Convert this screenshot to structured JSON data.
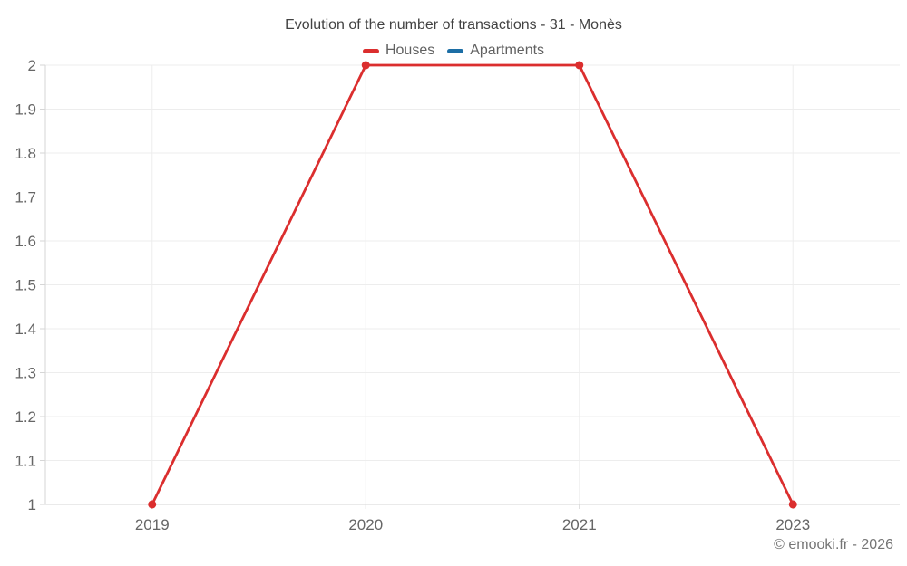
{
  "chart_data": {
    "type": "line",
    "title": "Evolution of the number of transactions - 31 - Monès",
    "categories": [
      "2019",
      "2020",
      "2021",
      "2023"
    ],
    "series": [
      {
        "name": "Houses",
        "color": "#db2e2e",
        "values": [
          1,
          2,
          2,
          1
        ]
      },
      {
        "name": "Apartments",
        "color": "#1c6ea5",
        "values": []
      }
    ],
    "ylim": [
      1,
      2
    ],
    "yticks": [
      1,
      1.1,
      1.2,
      1.3,
      1.4,
      1.5,
      1.6,
      1.7,
      1.8,
      1.9,
      2
    ],
    "ytick_labels": [
      "1",
      "1.1",
      "1.2",
      "1.3",
      "1.4",
      "1.5",
      "1.6",
      "1.7",
      "1.8",
      "1.9",
      "2"
    ],
    "grid": true,
    "legend_position": "top"
  },
  "footer": {
    "copyright": "© emooki.fr - 2026"
  }
}
